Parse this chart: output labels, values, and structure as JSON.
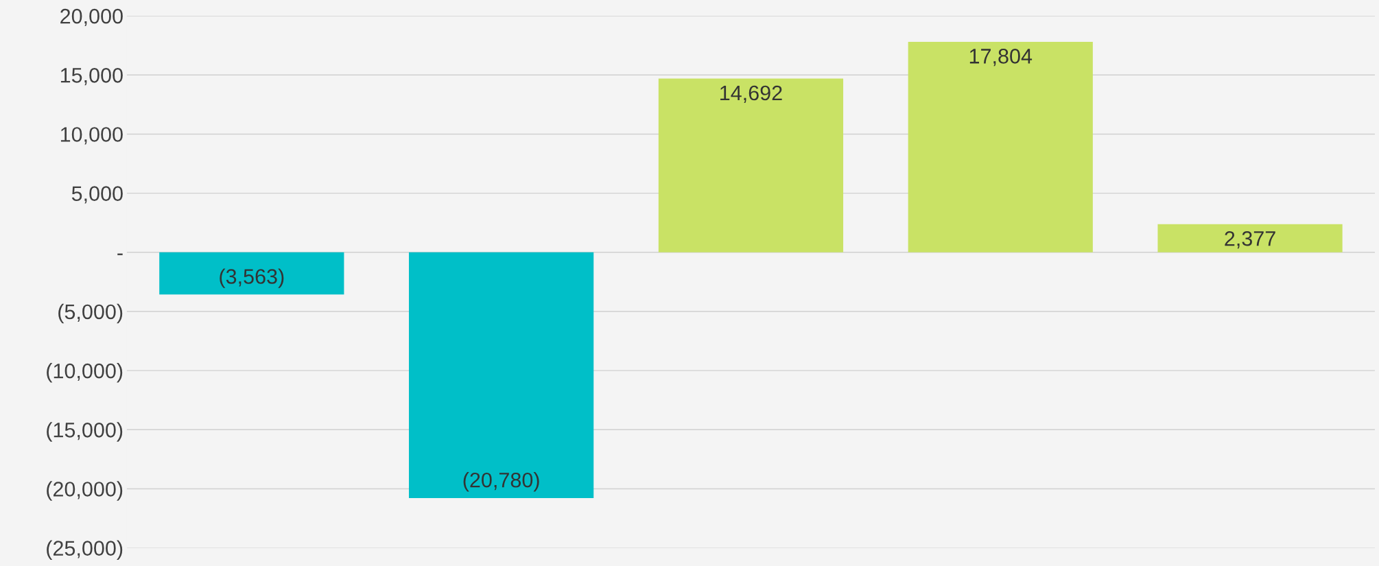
{
  "chart_data": {
    "type": "bar",
    "categories": [
      null,
      null,
      null,
      null,
      null
    ],
    "values": [
      -3563,
      -20780,
      14692,
      17804,
      2377
    ],
    "colors": [
      "#00bfc8",
      "#00bfc8",
      "#c9e265",
      "#c9e265",
      "#c9e265"
    ],
    "value_labels": [
      "(3,563)",
      "(20,780)",
      "14,692",
      "17,804",
      "2,377"
    ],
    "ylim": [
      -25000,
      20000
    ],
    "yticks": [
      {
        "value": -25000,
        "label": "(25,000)"
      },
      {
        "value": -20000,
        "label": "(20,000)"
      },
      {
        "value": -15000,
        "label": "(15,000)"
      },
      {
        "value": -10000,
        "label": "(10,000)"
      },
      {
        "value": -5000,
        "label": "(5,000)"
      },
      {
        "value": 0,
        "label": "-"
      },
      {
        "value": 5000,
        "label": "5,000"
      },
      {
        "value": 10000,
        "label": "10,000"
      },
      {
        "value": 15000,
        "label": "15,000"
      },
      {
        "value": 20000,
        "label": "20,000"
      }
    ],
    "grid": "y"
  }
}
